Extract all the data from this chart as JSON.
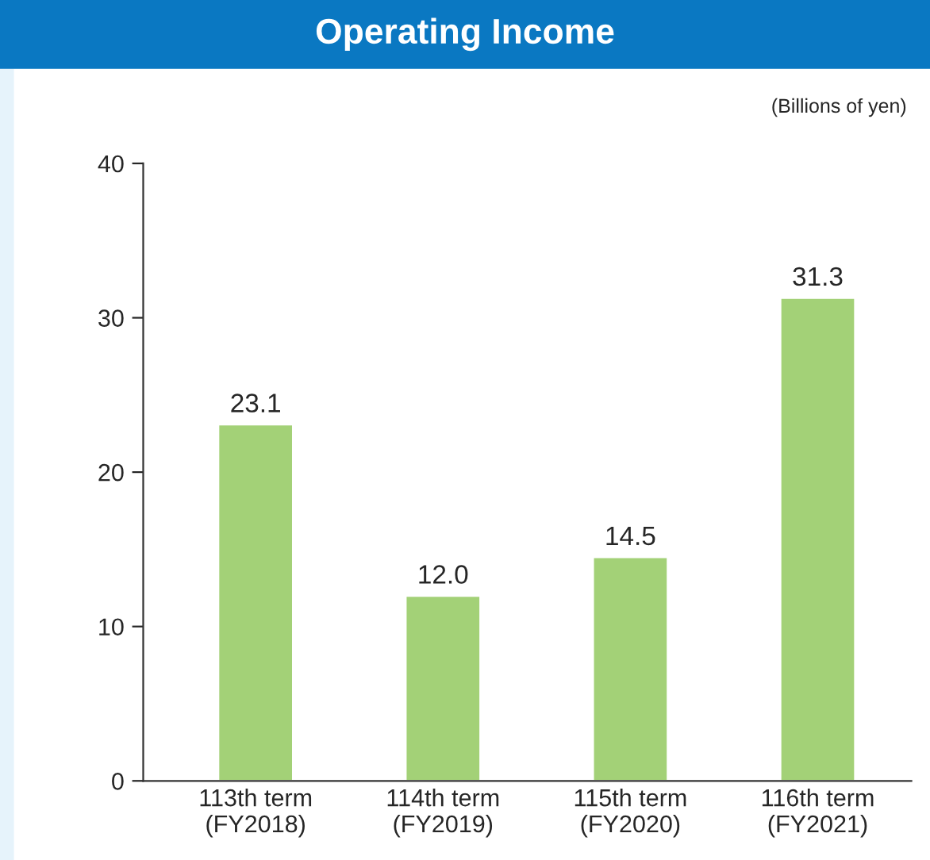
{
  "chart_data": {
    "type": "bar",
    "title": "Operating Income",
    "annotations": [
      "(Billions of yen)"
    ],
    "categories": [
      "113th term\n(FY2018)",
      "114th term\n(FY2019)",
      "115th term\n(FY2020)",
      "116th term\n(FY2021)"
    ],
    "values": [
      23.1,
      12.0,
      14.5,
      31.3
    ],
    "value_labels": [
      "23.1",
      "12.0",
      "14.5",
      "31.3"
    ],
    "color": "#a3d177",
    "ylim": [
      0,
      40
    ],
    "yticks": [
      0,
      10,
      20,
      30,
      40
    ],
    "grid": false,
    "legend": false
  }
}
